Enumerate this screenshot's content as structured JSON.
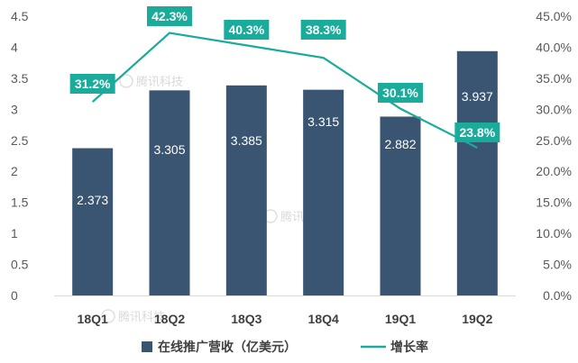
{
  "chart_data": {
    "type": "bar",
    "categories": [
      "18Q1",
      "18Q2",
      "18Q3",
      "18Q4",
      "19Q1",
      "19Q2"
    ],
    "series": [
      {
        "name": "在线推广营收（亿美元）",
        "type": "bar",
        "axis": "left",
        "values": [
          2.373,
          3.305,
          3.385,
          3.315,
          2.882,
          3.937
        ],
        "labels": [
          "2.373",
          "3.305",
          "3.385",
          "3.315",
          "2.882",
          "3.937"
        ]
      },
      {
        "name": "增长率",
        "type": "line",
        "axis": "right",
        "values": [
          31.2,
          42.3,
          40.3,
          38.3,
          30.1,
          23.8
        ],
        "labels": [
          "31.2%",
          "42.3%",
          "40.3%",
          "38.3%",
          "30.1%",
          "23.8%"
        ]
      }
    ],
    "y_left": {
      "ylim": [
        0,
        4.5
      ],
      "ticks": [
        "0",
        "0.5",
        "1",
        "1.5",
        "2",
        "2.5",
        "3",
        "3.5",
        "4",
        "4.5"
      ]
    },
    "y_right": {
      "ylim": [
        0,
        45
      ],
      "ticks": [
        "0.0%",
        "5.0%",
        "10.0%",
        "15.0%",
        "20.0%",
        "25.0%",
        "30.0%",
        "35.0%",
        "40.0%",
        "45.0%"
      ]
    },
    "grid": false,
    "legend_position": "bottom",
    "colors": {
      "bar": "#3a5572",
      "line": "#1aab9b",
      "label_box": "#1aab9b"
    },
    "watermark": "腾讯科技"
  }
}
